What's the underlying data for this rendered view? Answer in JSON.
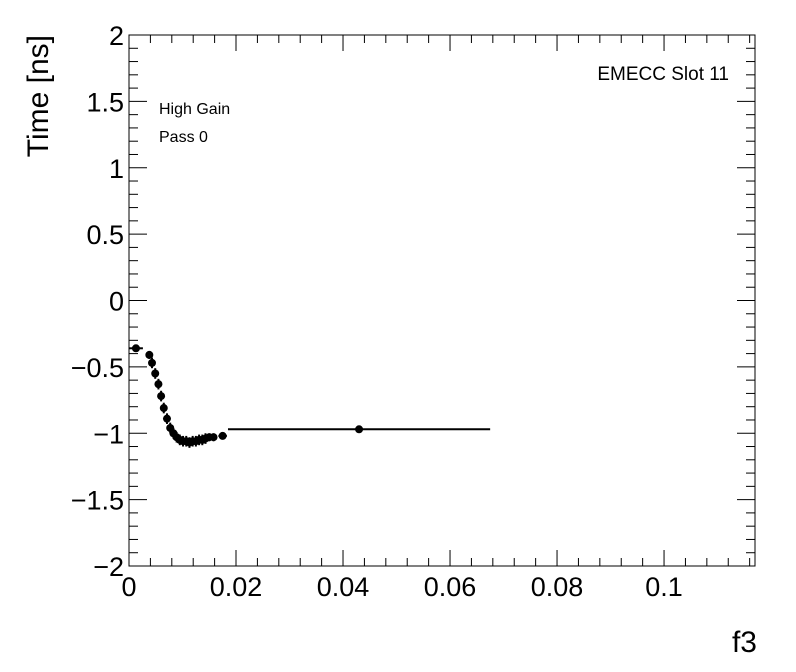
{
  "chart_data": {
    "type": "scatter",
    "ylabel": "Time [ns]",
    "xlabel": "f3",
    "annotations": {
      "top_right": "EMECC Slot 11",
      "top_left_line1": "High Gain",
      "top_left_line2": "Pass 0"
    },
    "xlim": [
      0,
      0.117
    ],
    "ylim": [
      -2,
      2
    ],
    "x_ticks": [
      0,
      0.02,
      0.04,
      0.06,
      0.08,
      0.1
    ],
    "x_tick_labels": [
      "0",
      "0.02",
      "0.04",
      "0.06",
      "0.08",
      "0.1"
    ],
    "y_ticks": [
      -2,
      -1.5,
      -1,
      -0.5,
      0,
      0.5,
      1,
      1.5,
      2
    ],
    "y_tick_labels": [
      "−2",
      "−1.5",
      "−1",
      "−0.5",
      "0",
      "0.5",
      "1",
      "1.5",
      "2"
    ],
    "grid": false,
    "series": [
      {
        "points": [
          {
            "x": 0.0013,
            "y": -0.36,
            "xerr": 0.0013,
            "yerr": 0.02
          },
          {
            "x": 0.0038,
            "y": -0.41,
            "xerr": 0.0004,
            "yerr": 0.03
          },
          {
            "x": 0.0043,
            "y": -0.47,
            "xerr": 0.0004,
            "yerr": 0.04
          },
          {
            "x": 0.0049,
            "y": -0.55,
            "xerr": 0.0004,
            "yerr": 0.04
          },
          {
            "x": 0.0055,
            "y": -0.63,
            "xerr": 0.0004,
            "yerr": 0.04
          },
          {
            "x": 0.006,
            "y": -0.72,
            "xerr": 0.0004,
            "yerr": 0.04
          },
          {
            "x": 0.0065,
            "y": -0.81,
            "xerr": 0.0004,
            "yerr": 0.04
          },
          {
            "x": 0.0071,
            "y": -0.89,
            "xerr": 0.0004,
            "yerr": 0.04
          },
          {
            "x": 0.0077,
            "y": -0.96,
            "xerr": 0.0004,
            "yerr": 0.04
          },
          {
            "x": 0.0083,
            "y": -1.0,
            "xerr": 0.0004,
            "yerr": 0.04
          },
          {
            "x": 0.0089,
            "y": -1.03,
            "xerr": 0.0004,
            "yerr": 0.04
          },
          {
            "x": 0.0095,
            "y": -1.05,
            "xerr": 0.0004,
            "yerr": 0.04
          },
          {
            "x": 0.0101,
            "y": -1.06,
            "xerr": 0.0004,
            "yerr": 0.04
          },
          {
            "x": 0.0107,
            "y": -1.06,
            "xerr": 0.0004,
            "yerr": 0.04
          },
          {
            "x": 0.0113,
            "y": -1.07,
            "xerr": 0.0004,
            "yerr": 0.04
          },
          {
            "x": 0.0119,
            "y": -1.06,
            "xerr": 0.0004,
            "yerr": 0.04
          },
          {
            "x": 0.0125,
            "y": -1.06,
            "xerr": 0.0004,
            "yerr": 0.04
          },
          {
            "x": 0.0131,
            "y": -1.05,
            "xerr": 0.0004,
            "yerr": 0.04
          },
          {
            "x": 0.0137,
            "y": -1.05,
            "xerr": 0.0004,
            "yerr": 0.04
          },
          {
            "x": 0.0143,
            "y": -1.04,
            "xerr": 0.0004,
            "yerr": 0.04
          },
          {
            "x": 0.015,
            "y": -1.03,
            "xerr": 0.0004,
            "yerr": 0.03
          },
          {
            "x": 0.0158,
            "y": -1.03,
            "xerr": 0.0004,
            "yerr": 0.03
          },
          {
            "x": 0.0175,
            "y": -1.02,
            "xerr": 0.0008,
            "yerr": 0.02
          },
          {
            "x": 0.043,
            "y": -0.97,
            "xerr": 0.0245,
            "yerr": 0.02
          }
        ]
      }
    ]
  }
}
